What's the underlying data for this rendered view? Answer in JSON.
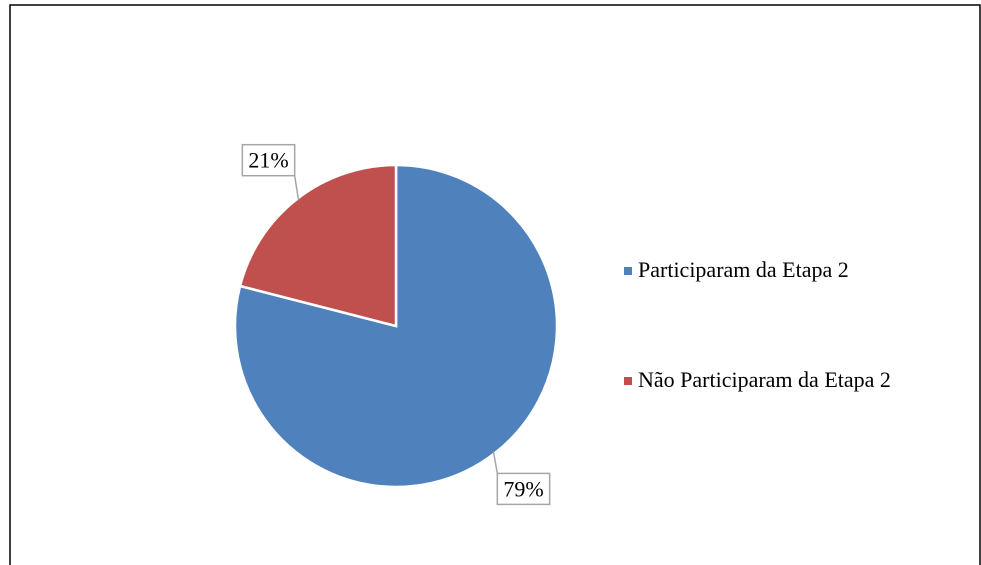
{
  "chart_data": {
    "type": "pie",
    "categories": [
      "Participaram da Etapa 2",
      "Não Participaram da Etapa 2"
    ],
    "values": [
      79,
      21
    ],
    "value_labels": [
      "79%",
      "21%"
    ],
    "colors": [
      "#4f81bd",
      "#c0504d"
    ],
    "legend": "right"
  }
}
